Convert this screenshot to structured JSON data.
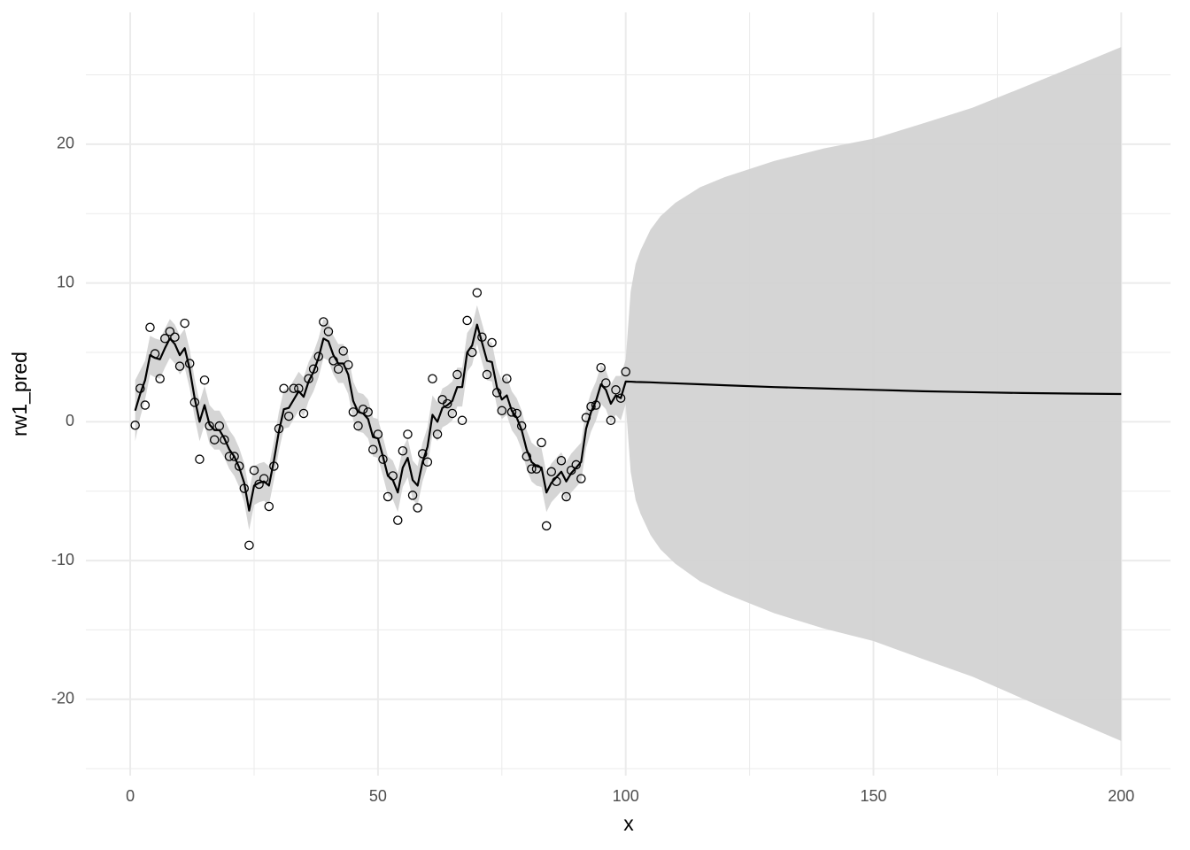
{
  "chart_data": {
    "type": "line",
    "x_label": "x",
    "y_label": "rw1_pred",
    "xlim": [
      -8.95,
      209.95
    ],
    "ylim": [
      -25.5,
      29.5
    ],
    "xticks": [
      0,
      50,
      100,
      150,
      200
    ],
    "yticks": [
      -20,
      -10,
      0,
      10,
      20
    ],
    "x_minor_ticks": [
      25,
      75,
      125,
      175
    ],
    "y_minor_ticks": [
      -25,
      -15,
      -5,
      5,
      15,
      25
    ],
    "grid": true,
    "ribbon": {
      "color": "#d3d3d3",
      "x": [
        1,
        2,
        3,
        4,
        5,
        6,
        7,
        8,
        9,
        10,
        11,
        12,
        13,
        14,
        15,
        16,
        17,
        18,
        19,
        20,
        21,
        22,
        23,
        24,
        25,
        26,
        27,
        28,
        29,
        30,
        31,
        32,
        33,
        34,
        35,
        36,
        37,
        38,
        39,
        40,
        41,
        42,
        43,
        44,
        45,
        46,
        47,
        48,
        49,
        50,
        51,
        52,
        53,
        54,
        55,
        56,
        57,
        58,
        59,
        60,
        61,
        62,
        63,
        64,
        65,
        66,
        67,
        68,
        69,
        70,
        71,
        72,
        73,
        74,
        75,
        76,
        77,
        78,
        79,
        80,
        81,
        82,
        83,
        84,
        85,
        86,
        87,
        88,
        89,
        90,
        91,
        92,
        93,
        94,
        95,
        96,
        97,
        98,
        99,
        100,
        101,
        102,
        103,
        105,
        107,
        110,
        115,
        120,
        130,
        140,
        150,
        160,
        170,
        180,
        190,
        200
      ],
      "lower": [
        -1.4,
        0.3,
        1.6,
        3.4,
        3.2,
        3.1,
        3.9,
        4.6,
        4.2,
        3.4,
        3.9,
        2.4,
        0.3,
        -1.4,
        -0.2,
        -1.6,
        -2.0,
        -2.0,
        -2.6,
        -3.4,
        -3.9,
        -4.7,
        -5.8,
        -7.8,
        -6.0,
        -5.8,
        -5.7,
        -6.0,
        -4.2,
        -2.1,
        -0.5,
        -0.4,
        0.2,
        0.8,
        0.4,
        1.5,
        2.2,
        3.2,
        4.6,
        4.4,
        3.4,
        2.8,
        2.8,
        2.0,
        0.1,
        -0.7,
        -0.8,
        -1.2,
        -2.5,
        -2.6,
        -3.9,
        -5.3,
        -5.6,
        -6.5,
        -4.7,
        -4.0,
        -5.6,
        -6.0,
        -4.3,
        -3.2,
        -0.9,
        -1.4,
        -0.4,
        -0.2,
        0.1,
        1.1,
        1.1,
        3.6,
        4.1,
        5.6,
        4.3,
        3.0,
        2.9,
        1.1,
        0.2,
        0.5,
        -0.6,
        -1.1,
        -2.0,
        -3.4,
        -4.3,
        -4.6,
        -4.7,
        -6.5,
        -5.8,
        -5.4,
        -5.0,
        -5.7,
        -5.1,
        -4.7,
        -4.3,
        -1.9,
        -0.7,
        0.1,
        1.3,
        0.9,
        -0.1,
        0.5,
        0.1,
        1.3,
        -3.61,
        -5.63,
        -6.64,
        -8.16,
        -9.19,
        -10.23,
        -11.5,
        -12.37,
        -13.8,
        -14.9,
        -15.8,
        -17.1,
        -18.37,
        -19.93,
        -21.47,
        -23.0
      ],
      "upper": [
        3.0,
        3.7,
        4.4,
        6.2,
        6.0,
        5.9,
        6.7,
        7.4,
        7.0,
        6.2,
        6.7,
        5.2,
        3.1,
        1.4,
        2.6,
        1.2,
        0.8,
        0.8,
        0.2,
        -0.6,
        -1.1,
        -1.9,
        -3.0,
        -5.0,
        -3.2,
        -3.0,
        -2.9,
        -3.2,
        -1.4,
        0.7,
        2.3,
        2.4,
        3.0,
        3.6,
        3.2,
        4.3,
        5.0,
        6.0,
        7.4,
        7.2,
        6.2,
        5.6,
        5.6,
        4.8,
        2.9,
        2.1,
        2.0,
        1.6,
        0.3,
        0.2,
        -1.1,
        -2.5,
        -2.8,
        -3.7,
        -1.9,
        -1.2,
        -2.8,
        -3.2,
        -1.5,
        -0.4,
        1.9,
        1.4,
        2.4,
        2.6,
        2.9,
        3.9,
        3.9,
        6.4,
        6.9,
        8.4,
        7.1,
        5.8,
        5.7,
        3.9,
        3.0,
        3.3,
        2.2,
        1.7,
        0.8,
        -0.6,
        -1.5,
        -1.8,
        -1.9,
        -3.7,
        -3.0,
        -2.6,
        -2.2,
        -2.9,
        -2.3,
        -1.9,
        -1.5,
        0.9,
        2.1,
        2.9,
        4.1,
        3.7,
        2.7,
        3.3,
        3.3,
        4.5,
        9.39,
        11.37,
        12.36,
        13.84,
        14.81,
        15.77,
        16.9,
        17.63,
        18.8,
        19.7,
        20.4,
        21.5,
        22.63,
        24.07,
        25.53,
        27.0
      ]
    },
    "line": {
      "color": "#000000",
      "x": [
        1,
        2,
        3,
        4,
        5,
        6,
        7,
        8,
        9,
        10,
        11,
        12,
        13,
        14,
        15,
        16,
        17,
        18,
        19,
        20,
        21,
        22,
        23,
        24,
        25,
        26,
        27,
        28,
        29,
        30,
        31,
        32,
        33,
        34,
        35,
        36,
        37,
        38,
        39,
        40,
        41,
        42,
        43,
        44,
        45,
        46,
        47,
        48,
        49,
        50,
        51,
        52,
        53,
        54,
        55,
        56,
        57,
        58,
        59,
        60,
        61,
        62,
        63,
        64,
        65,
        66,
        67,
        68,
        69,
        70,
        71,
        72,
        73,
        74,
        75,
        76,
        77,
        78,
        79,
        80,
        81,
        82,
        83,
        84,
        85,
        86,
        87,
        88,
        89,
        90,
        91,
        92,
        93,
        94,
        95,
        96,
        97,
        98,
        99,
        100,
        101,
        102,
        103,
        105,
        107,
        110,
        115,
        120,
        130,
        140,
        150,
        160,
        170,
        180,
        190,
        200
      ],
      "values": [
        0.8,
        2.0,
        3.0,
        4.8,
        4.6,
        4.5,
        5.3,
        6.0,
        5.6,
        4.8,
        5.3,
        3.8,
        1.7,
        0.0,
        1.2,
        -0.2,
        -0.6,
        -0.6,
        -1.2,
        -2.0,
        -2.5,
        -3.3,
        -4.4,
        -6.4,
        -4.6,
        -4.4,
        -4.3,
        -4.6,
        -2.8,
        -0.7,
        0.9,
        1.0,
        1.6,
        2.2,
        1.8,
        2.9,
        3.6,
        4.6,
        6.0,
        5.8,
        4.8,
        4.2,
        4.2,
        3.4,
        1.5,
        0.7,
        0.6,
        0.2,
        -1.1,
        -1.2,
        -2.5,
        -3.9,
        -4.2,
        -5.1,
        -3.3,
        -2.6,
        -4.2,
        -4.6,
        -2.9,
        -1.8,
        0.5,
        0.0,
        1.0,
        1.2,
        1.5,
        2.5,
        2.5,
        5.0,
        5.5,
        7.0,
        5.7,
        4.4,
        4.3,
        2.5,
        1.6,
        1.9,
        0.8,
        0.3,
        -0.6,
        -2.0,
        -2.9,
        -3.2,
        -3.3,
        -5.1,
        -4.4,
        -4.0,
        -3.6,
        -4.3,
        -3.7,
        -3.3,
        -2.9,
        -0.5,
        0.7,
        1.5,
        2.7,
        2.3,
        1.3,
        1.9,
        1.7,
        2.9,
        2.89,
        2.87,
        2.86,
        2.84,
        2.81,
        2.77,
        2.7,
        2.63,
        2.5,
        2.4,
        2.3,
        2.2,
        2.13,
        2.07,
        2.03,
        2.0
      ]
    },
    "points": {
      "color": "#000000",
      "x": [
        1,
        2,
        3,
        4,
        5,
        6,
        7,
        8,
        9,
        10,
        11,
        12,
        13,
        14,
        15,
        16,
        17,
        18,
        19,
        20,
        21,
        22,
        23,
        24,
        25,
        26,
        27,
        28,
        29,
        30,
        31,
        32,
        33,
        34,
        35,
        36,
        37,
        38,
        39,
        40,
        41,
        42,
        43,
        44,
        45,
        46,
        47,
        48,
        49,
        50,
        51,
        52,
        53,
        54,
        55,
        56,
        57,
        58,
        59,
        60,
        61,
        62,
        63,
        64,
        65,
        66,
        67,
        68,
        69,
        70,
        71,
        72,
        73,
        74,
        75,
        76,
        77,
        78,
        79,
        80,
        81,
        82,
        83,
        84,
        85,
        86,
        87,
        88,
        89,
        90,
        91,
        92,
        93,
        94,
        95,
        96,
        97,
        98,
        99,
        100
      ],
      "values": [
        -0.25,
        2.4,
        1.2,
        6.8,
        4.9,
        3.1,
        6.0,
        6.5,
        6.1,
        4.0,
        7.1,
        4.2,
        1.4,
        -2.7,
        3.0,
        -0.3,
        -1.3,
        -0.3,
        -1.3,
        -2.5,
        -2.5,
        -3.2,
        -4.8,
        -8.9,
        -3.5,
        -4.5,
        -4.1,
        -6.1,
        -3.2,
        -0.5,
        2.4,
        0.4,
        2.4,
        2.4,
        0.6,
        3.1,
        3.8,
        4.7,
        7.2,
        6.5,
        4.4,
        3.8,
        5.1,
        4.1,
        0.7,
        -0.3,
        0.9,
        0.7,
        -2.0,
        -0.9,
        -2.7,
        -5.4,
        -3.9,
        -7.1,
        -2.1,
        -0.9,
        -5.3,
        -6.2,
        -2.3,
        -2.9,
        3.1,
        -0.9,
        1.6,
        1.3,
        0.6,
        3.4,
        0.1,
        7.3,
        5.0,
        9.3,
        6.1,
        3.4,
        5.7,
        2.1,
        0.8,
        3.1,
        0.7,
        0.6,
        -0.3,
        -2.5,
        -3.4,
        -3.4,
        -1.5,
        -7.5,
        -3.6,
        -4.3,
        -2.8,
        -5.4,
        -3.5,
        -3.1,
        -4.1,
        0.3,
        1.1,
        1.2,
        3.9,
        2.8,
        0.1,
        2.3,
        1.7,
        3.6
      ]
    }
  }
}
